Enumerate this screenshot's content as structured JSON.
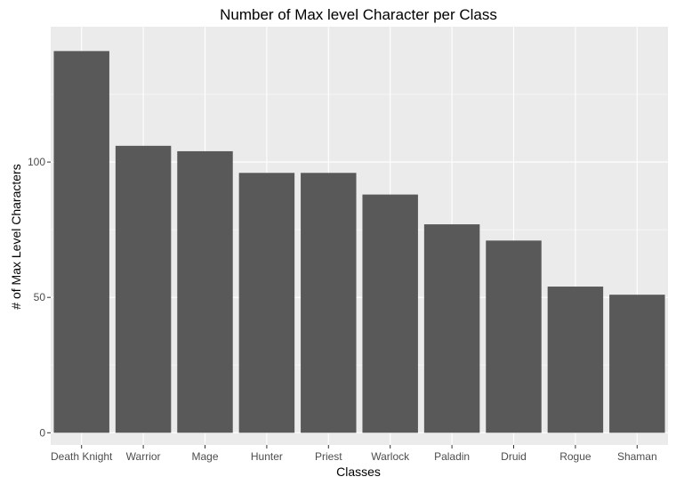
{
  "chart_data": {
    "type": "bar",
    "title": "Number of Max level Character per Class",
    "xlabel": "Classes",
    "ylabel": "# of Max Level Characters",
    "categories": [
      "Death Knight",
      "Warrior",
      "Mage",
      "Hunter",
      "Priest",
      "Warlock",
      "Paladin",
      "Druid",
      "Rogue",
      "Shaman"
    ],
    "values": [
      141,
      106,
      104,
      96,
      96,
      88,
      77,
      71,
      54,
      51
    ],
    "ylim": [
      -4.5,
      150
    ],
    "yticks": [
      0,
      50,
      100
    ],
    "grid": true,
    "legend": "none",
    "colors": {
      "panel": "#ebebeb",
      "grid_major": "#ffffff",
      "grid_minor": "#f5f5f5",
      "bar": "#595959",
      "tick_text": "#4d4d4d",
      "tick_mark": "#333333"
    }
  }
}
